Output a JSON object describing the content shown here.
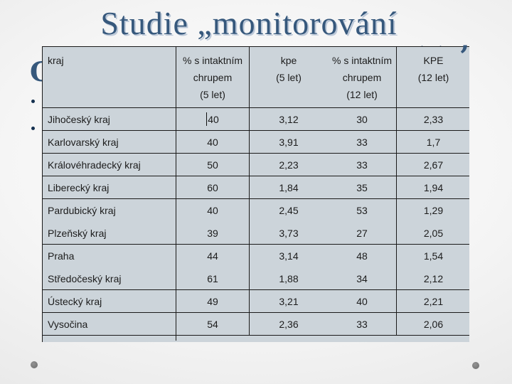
{
  "slide": {
    "title": "Studie „monitorování",
    "accent_color": "#36587c",
    "hidden_line_fragments": {
      "left_letter": "C",
      "caron_mark": "ˇ",
      "right_quote": "’"
    },
    "bullet_glyph": "•"
  },
  "table": {
    "columns": [
      {
        "key": "kraj",
        "lines": [
          "kraj"
        ]
      },
      {
        "key": "pct-intaktni-5",
        "lines": [
          "% s intaktním",
          "chrupem",
          "(5 let)"
        ]
      },
      {
        "key": "kpe-5",
        "lines": [
          "kpe",
          "(5 let)"
        ]
      },
      {
        "key": "pct-intaktni-12",
        "lines": [
          "% s intaktním",
          "chrupem",
          "(12 let)"
        ]
      },
      {
        "key": "kpe-12",
        "lines": [
          "KPE",
          "(12 let)"
        ]
      }
    ],
    "rows": [
      {
        "kraj": "Jihočeský kraj",
        "values": [
          "40",
          "3,12",
          "30",
          "2,33"
        ]
      },
      {
        "kraj": "Karlovarský kraj",
        "values": [
          "40",
          "3,91",
          "33",
          "1,7"
        ]
      },
      {
        "kraj": "Královéhradecký kraj",
        "values": [
          "50",
          "2,23",
          "33",
          "2,67"
        ]
      },
      {
        "kraj": "Liberecký kraj",
        "values": [
          "60",
          "1,84",
          "35",
          "1,94"
        ]
      },
      {
        "kraj": "Pardubický kraj",
        "values": [
          "40",
          "2,45",
          "53",
          "1,29"
        ],
        "divider_below": false
      },
      {
        "kraj": "Plzeňský kraj",
        "values": [
          "39",
          "3,73",
          "27",
          "2,05"
        ]
      },
      {
        "kraj": "Praha",
        "values": [
          "44",
          "3,14",
          "48",
          "1,54"
        ],
        "divider_below": false
      },
      {
        "kraj": "Středočeský kraj",
        "values": [
          "61",
          "1,88",
          "34",
          "2,12"
        ]
      },
      {
        "kraj": "Ústecký kraj",
        "values": [
          "49",
          "3,21",
          "40",
          "2,21"
        ]
      },
      {
        "kraj": "Vysočina",
        "values": [
          "54",
          "2,36",
          "33",
          "2,06"
        ]
      }
    ],
    "caret": {
      "row": 0,
      "col": 1
    },
    "colors": {
      "cell_background": "#ccd4da",
      "border": "#1a1a1a",
      "text": "#1c1c1c"
    }
  }
}
